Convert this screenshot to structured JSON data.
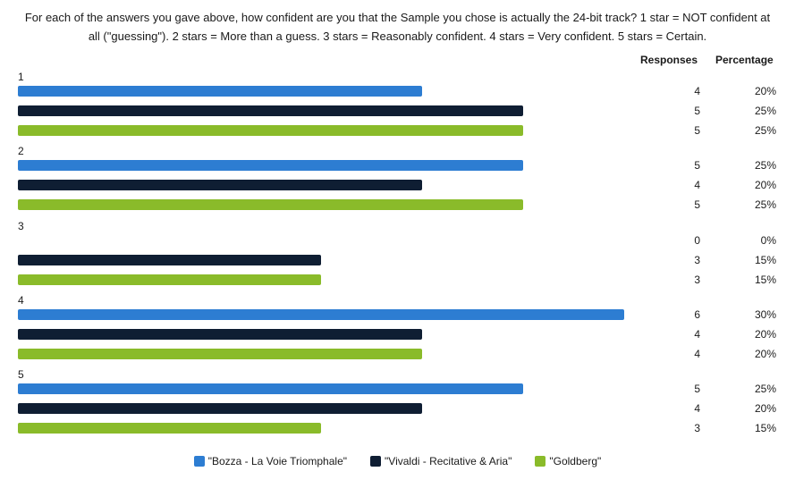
{
  "question": "For each of the answers you gave above, how confident are you that the Sample you chose is actually the 24-bit track? 1 star = NOT confident at all (\"guessing\"). 2 stars = More than a guess. 3 stars = Reasonably confident. 4 stars = Very confident. 5 stars = Certain.",
  "columns": {
    "responses": "Responses",
    "percentage": "Percentage"
  },
  "chart_data": {
    "type": "bar",
    "orientation": "horizontal",
    "categories": [
      "1",
      "2",
      "3",
      "4",
      "5"
    ],
    "series": [
      {
        "name": "\"Bozza - La Voie Triomphale\"",
        "color": "#2d7dd2",
        "values": [
          4,
          5,
          0,
          6,
          5
        ],
        "percentages": [
          "20%",
          "25%",
          "0%",
          "30%",
          "25%"
        ]
      },
      {
        "name": "\"Vivaldi - Recitative & Aria\"",
        "color": "#0f1e33",
        "values": [
          5,
          4,
          3,
          4,
          4
        ],
        "percentages": [
          "25%",
          "20%",
          "15%",
          "20%",
          "20%"
        ]
      },
      {
        "name": "\"Goldberg\"",
        "color": "#8abb2a",
        "values": [
          5,
          5,
          3,
          4,
          3
        ],
        "percentages": [
          "25%",
          "25%",
          "15%",
          "20%",
          "15%"
        ]
      }
    ],
    "xlim": [
      0,
      6
    ],
    "legend": "bottom",
    "grid": false
  }
}
